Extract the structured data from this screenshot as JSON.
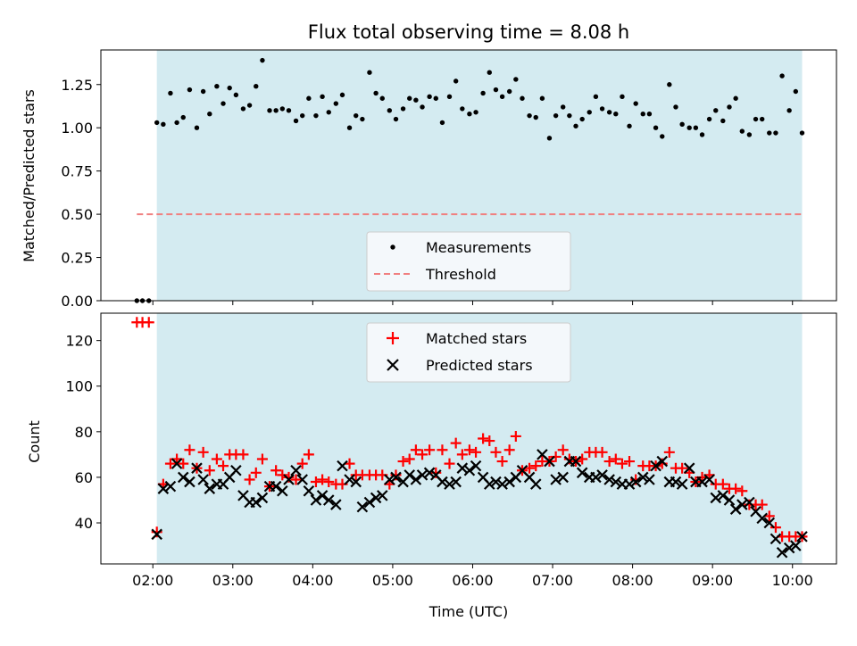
{
  "chart_data": {
    "type": "scatter",
    "title": "Flux total observing time = 8.08 h",
    "xlabel": "Time (UTC)",
    "x_unit": "hours since 00:00 UTC",
    "xlim": [
      1.35,
      10.55
    ],
    "xticks": [
      {
        "value": 2,
        "label": "02:00"
      },
      {
        "value": 3,
        "label": "03:00"
      },
      {
        "value": 4,
        "label": "04:00"
      },
      {
        "value": 5,
        "label": "05:00"
      },
      {
        "value": 6,
        "label": "06:00"
      },
      {
        "value": 7,
        "label": "07:00"
      },
      {
        "value": 8,
        "label": "08:00"
      },
      {
        "value": 9,
        "label": "09:00"
      },
      {
        "value": 10,
        "label": "10:00"
      }
    ],
    "observing_window": [
      2.05,
      10.12
    ],
    "colors": {
      "window": "#d4ebf1",
      "measurement": "#000000",
      "threshold": "#f08080",
      "matched": "#ff0000",
      "predicted": "#000000",
      "legend_bg": "#f4f8fb"
    },
    "top": {
      "ylabel": "Matched/Predicted stars",
      "ylim": [
        0,
        1.45
      ],
      "yticks": [
        {
          "value": 0,
          "label": "0.00"
        },
        {
          "value": 0.25,
          "label": "0.25"
        },
        {
          "value": 0.5,
          "label": "0.50"
        },
        {
          "value": 0.75,
          "label": "0.75"
        },
        {
          "value": 1.0,
          "label": "1.00"
        },
        {
          "value": 1.25,
          "label": "1.25"
        }
      ],
      "threshold": {
        "value": 0.5,
        "x_range": [
          1.8,
          10.12
        ]
      },
      "legend": [
        "Measurements",
        "Threshold"
      ],
      "legend_position": "lower-center",
      "measurements": {
        "x": [
          1.8,
          1.87,
          1.95,
          2.05,
          2.13,
          2.22,
          2.3,
          2.38,
          2.46,
          2.55,
          2.63,
          2.71,
          2.8,
          2.88,
          2.96,
          3.04,
          3.13,
          3.21,
          3.29,
          3.37,
          3.46,
          3.54,
          3.62,
          3.7,
          3.79,
          3.87,
          3.95,
          4.04,
          4.12,
          4.2,
          4.29,
          4.37,
          4.46,
          4.54,
          4.62,
          4.71,
          4.79,
          4.87,
          4.96,
          5.04,
          5.13,
          5.21,
          5.29,
          5.37,
          5.46,
          5.54,
          5.62,
          5.71,
          5.79,
          5.87,
          5.96,
          6.04,
          6.13,
          6.21,
          6.29,
          6.37,
          6.46,
          6.54,
          6.62,
          6.71,
          6.79,
          6.87,
          6.96,
          7.04,
          7.13,
          7.21,
          7.29,
          7.37,
          7.46,
          7.54,
          7.62,
          7.71,
          7.79,
          7.87,
          7.96,
          8.04,
          8.13,
          8.21,
          8.29,
          8.37,
          8.46,
          8.54,
          8.62,
          8.71,
          8.79,
          8.87,
          8.96,
          9.04,
          9.13,
          9.21,
          9.29,
          9.37,
          9.46,
          9.54,
          9.62,
          9.71,
          9.79,
          9.87,
          9.96,
          10.04,
          10.12
        ],
        "y": [
          0.0,
          0.0,
          0.0,
          1.03,
          1.02,
          1.2,
          1.03,
          1.06,
          1.22,
          1.0,
          1.21,
          1.08,
          1.24,
          1.14,
          1.23,
          1.19,
          1.11,
          1.13,
          1.24,
          1.39,
          1.1,
          1.1,
          1.11,
          1.1,
          1.04,
          1.07,
          1.17,
          1.07,
          1.18,
          1.09,
          1.14,
          1.19,
          1.0,
          1.07,
          1.05,
          1.32,
          1.2,
          1.17,
          1.1,
          1.05,
          1.11,
          1.17,
          1.16,
          1.12,
          1.18,
          1.17,
          1.03,
          1.18,
          1.27,
          1.11,
          1.08,
          1.09,
          1.2,
          1.32,
          1.22,
          1.18,
          1.21,
          1.28,
          1.17,
          1.07,
          1.06,
          1.17,
          0.94,
          1.07,
          1.12,
          1.07,
          1.01,
          1.05,
          1.09,
          1.18,
          1.11,
          1.09,
          1.08,
          1.18,
          1.01,
          1.14,
          1.08,
          1.08,
          1.0,
          0.95,
          1.25,
          1.12,
          1.02,
          1.0,
          1.0,
          0.96,
          1.05,
          1.1,
          1.04,
          1.12,
          1.17,
          0.98,
          0.96,
          1.05,
          1.05,
          0.97,
          0.97,
          1.3,
          1.1,
          1.21,
          0.97
        ]
      }
    },
    "bottom": {
      "ylabel": "Count",
      "ylim": [
        22,
        132
      ],
      "yticks": [
        {
          "value": 40,
          "label": "40"
        },
        {
          "value": 60,
          "label": "60"
        },
        {
          "value": 80,
          "label": "80"
        },
        {
          "value": 100,
          "label": "100"
        },
        {
          "value": 120,
          "label": "120"
        }
      ],
      "legend": [
        "Matched stars",
        "Predicted stars"
      ],
      "legend_position": "upper-center",
      "matched": {
        "x": [
          1.8,
          1.87,
          1.95,
          2.05,
          2.13,
          2.22,
          2.3,
          2.38,
          2.46,
          2.55,
          2.63,
          2.71,
          2.8,
          2.88,
          2.96,
          3.04,
          3.13,
          3.21,
          3.29,
          3.37,
          3.46,
          3.54,
          3.62,
          3.7,
          3.79,
          3.87,
          3.95,
          4.04,
          4.12,
          4.2,
          4.29,
          4.37,
          4.46,
          4.54,
          4.62,
          4.71,
          4.79,
          4.87,
          4.96,
          5.04,
          5.13,
          5.21,
          5.29,
          5.37,
          5.46,
          5.54,
          5.62,
          5.71,
          5.79,
          5.87,
          5.96,
          6.04,
          6.13,
          6.21,
          6.29,
          6.37,
          6.46,
          6.54,
          6.62,
          6.71,
          6.79,
          6.87,
          6.96,
          7.04,
          7.13,
          7.21,
          7.29,
          7.37,
          7.46,
          7.54,
          7.62,
          7.71,
          7.79,
          7.87,
          7.96,
          8.04,
          8.13,
          8.21,
          8.29,
          8.37,
          8.46,
          8.54,
          8.62,
          8.71,
          8.79,
          8.87,
          8.96,
          9.04,
          9.13,
          9.21,
          9.29,
          9.37,
          9.46,
          9.54,
          9.62,
          9.71,
          9.79,
          9.87,
          9.96,
          10.04,
          10.12
        ],
        "y": [
          128,
          128,
          128,
          36,
          57,
          66,
          68,
          66,
          72,
          64,
          71,
          63,
          68,
          65,
          70,
          70,
          70,
          59,
          62,
          68,
          56,
          63,
          61,
          60,
          59,
          66,
          70,
          58,
          59,
          58,
          57,
          57,
          66,
          61,
          61,
          61,
          61,
          61,
          57,
          61,
          67,
          68,
          72,
          70,
          72,
          62,
          72,
          66,
          75,
          70,
          72,
          71,
          77,
          76,
          71,
          67,
          72,
          78,
          63,
          64,
          65,
          67,
          67,
          69,
          72,
          68,
          67,
          68,
          71,
          71,
          71,
          67,
          68,
          66,
          67,
          59,
          65,
          65,
          65,
          66,
          71,
          64,
          64,
          62,
          58,
          60,
          61,
          57,
          57,
          55,
          55,
          54,
          48,
          48,
          48,
          43,
          38,
          34,
          34,
          34,
          34
        ]
      },
      "predicted": {
        "x": [
          2.05,
          2.13,
          2.22,
          2.3,
          2.38,
          2.46,
          2.55,
          2.63,
          2.71,
          2.8,
          2.88,
          2.96,
          3.04,
          3.13,
          3.21,
          3.29,
          3.37,
          3.46,
          3.54,
          3.62,
          3.7,
          3.79,
          3.87,
          3.95,
          4.04,
          4.12,
          4.2,
          4.29,
          4.37,
          4.46,
          4.54,
          4.62,
          4.71,
          4.79,
          4.87,
          4.96,
          5.04,
          5.13,
          5.21,
          5.29,
          5.37,
          5.46,
          5.54,
          5.62,
          5.71,
          5.79,
          5.87,
          5.96,
          6.04,
          6.13,
          6.21,
          6.29,
          6.37,
          6.46,
          6.54,
          6.62,
          6.71,
          6.79,
          6.87,
          6.96,
          7.04,
          7.13,
          7.21,
          7.29,
          7.37,
          7.46,
          7.54,
          7.62,
          7.71,
          7.79,
          7.87,
          7.96,
          8.04,
          8.13,
          8.21,
          8.29,
          8.37,
          8.46,
          8.54,
          8.62,
          8.71,
          8.79,
          8.87,
          8.96,
          9.04,
          9.13,
          9.21,
          9.29,
          9.37,
          9.46,
          9.54,
          9.62,
          9.71,
          9.79,
          9.87,
          9.96,
          10.04,
          10.12
        ],
        "y": [
          35,
          55,
          56,
          66,
          60,
          58,
          64,
          59,
          55,
          57,
          57,
          60,
          63,
          52,
          49,
          49,
          51,
          56,
          56,
          54,
          59,
          63,
          59,
          54,
          50,
          52,
          50,
          48,
          65,
          59,
          58,
          47,
          49,
          51,
          52,
          59,
          60,
          58,
          61,
          59,
          61,
          62,
          61,
          58,
          57,
          58,
          64,
          63,
          65,
          60,
          57,
          58,
          57,
          58,
          60,
          63,
          60,
          57,
          70,
          67,
          59,
          60,
          67,
          67,
          62,
          60,
          60,
          61,
          59,
          58,
          57,
          57,
          58,
          60,
          59,
          65,
          67,
          58,
          58,
          57,
          64,
          58,
          58,
          59,
          51,
          52,
          50,
          46,
          48,
          49,
          45,
          42,
          40,
          33,
          27,
          29,
          30,
          34
        ]
      }
    }
  }
}
